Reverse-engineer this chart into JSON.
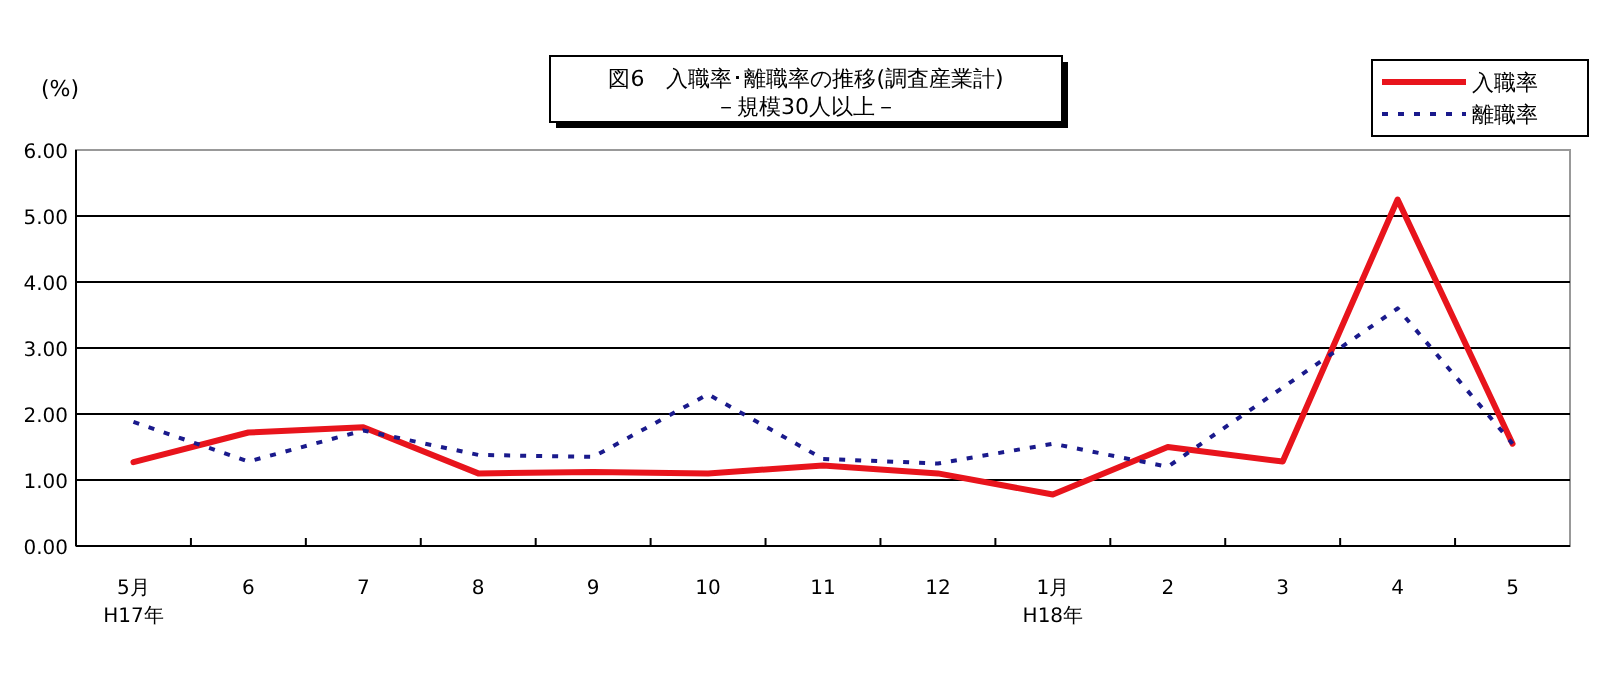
{
  "chart_data": {
    "type": "line",
    "title": "図6　入職率･離職率の推移(調査産業計)",
    "subtitle": "－規模30人以上－",
    "ylabel": "(%)",
    "categories": [
      "5月\nH17年",
      "6",
      "7",
      "8",
      "9",
      "10",
      "11",
      "12",
      "1月\nH18年",
      "2",
      "3",
      "4",
      "5"
    ],
    "series": [
      {
        "name": "入職率",
        "color": "#e8141c",
        "line_style": "solid",
        "values": [
          1.27,
          1.72,
          1.8,
          1.1,
          1.12,
          1.1,
          1.22,
          1.1,
          0.78,
          1.5,
          1.28,
          5.25,
          1.55
        ]
      },
      {
        "name": "離職率",
        "color": "#1a1a8c",
        "line_style": "dotted",
        "values": [
          1.88,
          1.28,
          1.75,
          1.38,
          1.35,
          2.3,
          1.32,
          1.25,
          1.55,
          1.2,
          2.4,
          3.6,
          1.55
        ]
      }
    ],
    "ylim": [
      0,
      6
    ],
    "yticks": [
      {
        "value": 0,
        "label": "0.00"
      },
      {
        "value": 1,
        "label": "1.00"
      },
      {
        "value": 2,
        "label": "2.00"
      },
      {
        "value": 3,
        "label": "3.00"
      },
      {
        "value": 4,
        "label": "4.00"
      },
      {
        "value": 5,
        "label": "5.00"
      },
      {
        "value": 6,
        "label": "6.00"
      }
    ],
    "grid": "y",
    "legend": "top right",
    "marker": "none"
  }
}
